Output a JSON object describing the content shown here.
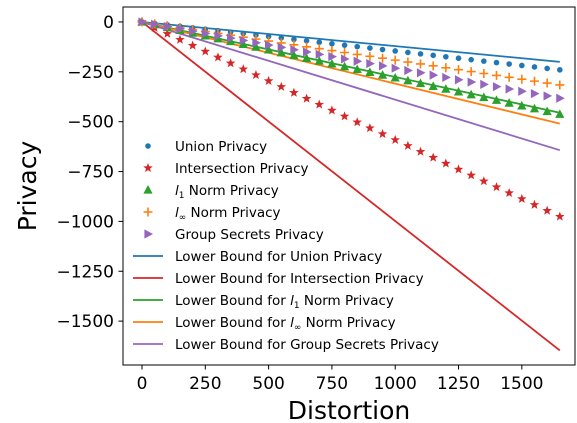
{
  "chart_data": {
    "type": "line",
    "title": "",
    "xlabel": "Distortion",
    "ylabel": "Privacy",
    "xlim": [
      -75,
      1710
    ],
    "ylim": [
      -1720,
      75
    ],
    "x_ticks": [
      0,
      250,
      500,
      750,
      1000,
      1250,
      1500
    ],
    "x_tick_labels": [
      "0",
      "250",
      "500",
      "750",
      "1000",
      "1250",
      "1500"
    ],
    "y_ticks": [
      0,
      -250,
      -500,
      -750,
      -1000,
      -1250,
      -1500
    ],
    "y_tick_labels": [
      "0",
      "−250",
      "−500",
      "−750",
      "−1000",
      "−1250",
      "−1500"
    ],
    "grid": false,
    "legend_position": "lower-left",
    "x_start": 0,
    "x_step": 50,
    "x_count": 34,
    "point_series": [
      {
        "name": "Union Privacy",
        "marker": "dot",
        "color": "#1f77b4",
        "slope": -0.1455
      },
      {
        "name": "Intersection Privacy",
        "marker": "star",
        "color": "#d62728",
        "slope": -0.5914
      },
      {
        "name_prefix": "l",
        "name_sub": "1",
        "name_suffix": " Norm Privacy",
        "marker": "triangle-up",
        "color": "#2ca02c",
        "slope": -0.2807
      },
      {
        "name_prefix": "l",
        "name_sub": "∞",
        "name_suffix": " Norm Privacy",
        "marker": "plus",
        "color": "#ff7f0e",
        "slope": -0.1914
      },
      {
        "name": "Group Secrets Privacy",
        "marker": "triangle-right",
        "color": "#9467bd",
        "slope": -0.2318
      }
    ],
    "line_series": [
      {
        "name": "Lower Bound for Union Privacy",
        "color": "#1f77b4",
        "x": [
          0,
          1650
        ],
        "y": [
          0,
          -200
        ]
      },
      {
        "name": "Lower Bound for Intersection Privacy",
        "color": "#d62728",
        "x": [
          0,
          1650
        ],
        "y": [
          0,
          -1647
        ]
      },
      {
        "name_prefix": "Lower Bound for l",
        "name_sub": "1",
        "name_suffix": " Norm Privacy",
        "color": "#2ca02c",
        "x": [
          0,
          1650
        ],
        "y": [
          0,
          -455
        ]
      },
      {
        "name_prefix": "Lower Bound for l",
        "name_sub": "∞",
        "name_suffix": " Norm Privacy",
        "color": "#ff7f0e",
        "x": [
          0,
          1650
        ],
        "y": [
          0,
          -510
        ]
      },
      {
        "name": "Lower Bound for Group Secrets Privacy",
        "color": "#9467bd",
        "x": [
          0,
          1650
        ],
        "y": [
          0,
          -643
        ]
      }
    ]
  }
}
